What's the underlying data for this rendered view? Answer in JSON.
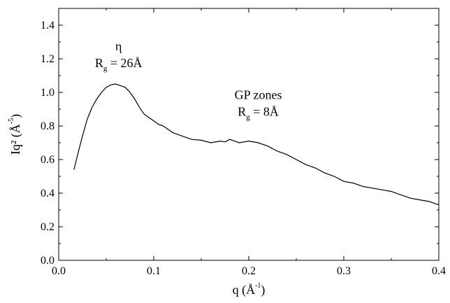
{
  "chart_data": {
    "type": "line",
    "title": "",
    "xlabel": {
      "base": "q (Å",
      "sup": "-1",
      "tail": ")"
    },
    "ylabel": {
      "base": "Iq² (Å",
      "sup": "-5",
      "tail": ")"
    },
    "xlim": [
      0.0,
      0.4
    ],
    "ylim": [
      0.0,
      1.5
    ],
    "xticks": [
      0.0,
      0.1,
      0.2,
      0.3,
      0.4
    ],
    "xtick_labels": [
      "0.0",
      "0.1",
      "0.2",
      "0.3",
      "0.4"
    ],
    "yticks": [
      0.0,
      0.2,
      0.4,
      0.6,
      0.8,
      1.0,
      1.2,
      1.4
    ],
    "ytick_labels": [
      "0.0",
      "0.2",
      "0.4",
      "0.6",
      "0.8",
      "1.0",
      "1.2",
      "1.4"
    ],
    "grid": false,
    "line_color": "#000000",
    "series": [
      {
        "x": [
          0.016,
          0.02,
          0.025,
          0.03,
          0.035,
          0.04,
          0.045,
          0.05,
          0.055,
          0.06,
          0.065,
          0.07,
          0.075,
          0.08,
          0.085,
          0.09,
          0.095,
          0.1,
          0.105,
          0.11,
          0.115,
          0.12,
          0.13,
          0.14,
          0.15,
          0.16,
          0.17,
          0.175,
          0.18,
          0.185,
          0.19,
          0.2,
          0.21,
          0.22,
          0.23,
          0.24,
          0.25,
          0.26,
          0.27,
          0.28,
          0.29,
          0.3,
          0.31,
          0.32,
          0.33,
          0.34,
          0.35,
          0.36,
          0.37,
          0.38,
          0.39,
          0.395,
          0.4
        ],
        "y": [
          0.54,
          0.63,
          0.74,
          0.84,
          0.91,
          0.96,
          1.0,
          1.03,
          1.045,
          1.05,
          1.04,
          1.03,
          1.0,
          0.96,
          0.91,
          0.87,
          0.85,
          0.83,
          0.81,
          0.8,
          0.78,
          0.76,
          0.74,
          0.72,
          0.715,
          0.7,
          0.71,
          0.705,
          0.72,
          0.71,
          0.7,
          0.71,
          0.7,
          0.68,
          0.65,
          0.63,
          0.6,
          0.57,
          0.55,
          0.52,
          0.5,
          0.47,
          0.46,
          0.44,
          0.43,
          0.42,
          0.41,
          0.39,
          0.37,
          0.36,
          0.35,
          0.34,
          0.33
        ]
      }
    ],
    "annotations": [
      {
        "line1": "η",
        "line2_base": "R",
        "line2_sub": "g",
        "line2_tail": " = 26Å",
        "x": 0.063,
        "y": 1.15
      },
      {
        "line1": "GP zones",
        "line2_base": "R",
        "line2_sub": "g",
        "line2_tail": " = 8Å",
        "x": 0.21,
        "y": 0.86
      }
    ]
  }
}
